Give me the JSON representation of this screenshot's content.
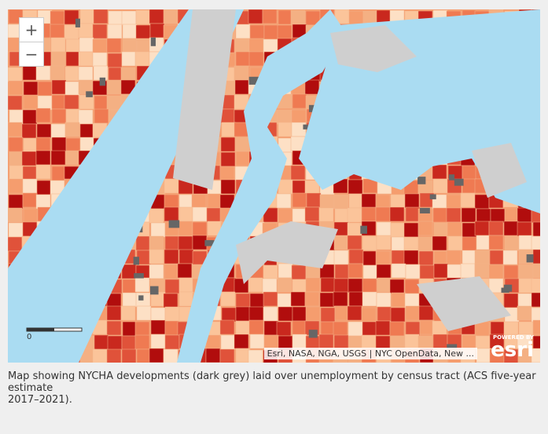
{
  "map": {
    "zoom_in": "+",
    "zoom_out": "−",
    "scale_label": "0",
    "attribution": "Esri, NASA, NGA, USGS | NYC OpenData, New ...",
    "logo_top": "POWERED BY",
    "logo": "esri"
  },
  "caption": {
    "line1": "Map showing NYCHA developments (dark grey) laid over unemployment by census tract (ACS five-year estimate",
    "line2": "2017–2021)."
  }
}
